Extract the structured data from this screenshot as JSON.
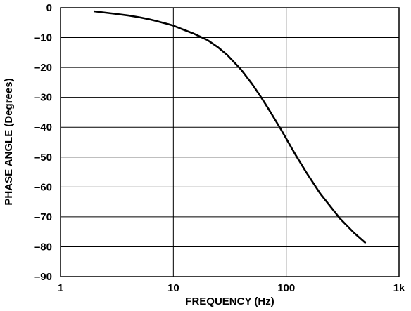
{
  "chart_data": {
    "type": "line",
    "title": "",
    "xlabel": "FREQUENCY (Hz)",
    "ylabel": "PHASE ANGLE (Degrees)",
    "x_scale": "log",
    "xlim": [
      1,
      1000
    ],
    "ylim": [
      -90,
      0
    ],
    "x_ticks": [
      {
        "value": 1,
        "label": "1"
      },
      {
        "value": 10,
        "label": "10"
      },
      {
        "value": 100,
        "label": "100"
      },
      {
        "value": 1000,
        "label": "1k"
      }
    ],
    "y_ticks": [
      {
        "value": 0,
        "label": "0"
      },
      {
        "value": -10,
        "label": "–10"
      },
      {
        "value": -20,
        "label": "–20"
      },
      {
        "value": -30,
        "label": "–30"
      },
      {
        "value": -40,
        "label": "–40"
      },
      {
        "value": -50,
        "label": "–50"
      },
      {
        "value": -60,
        "label": "–60"
      },
      {
        "value": -70,
        "label": "–70"
      },
      {
        "value": -80,
        "label": "–80"
      },
      {
        "value": -90,
        "label": "–90"
      }
    ],
    "grid": true,
    "legend": "none",
    "series": [
      {
        "x": [
          2,
          3,
          4,
          5,
          6,
          7,
          8,
          9,
          10,
          12,
          15,
          20,
          25,
          30,
          40,
          50,
          60,
          70,
          80,
          90,
          100,
          120,
          150,
          200,
          300,
          400,
          500
        ],
        "y": [
          -1.2,
          -2,
          -2.6,
          -3.2,
          -3.8,
          -4.4,
          -5.0,
          -5.5,
          -6.0,
          -7.2,
          -8.6,
          -10.8,
          -13.3,
          -15.8,
          -20.8,
          -25.6,
          -30.0,
          -34.0,
          -37.6,
          -40.8,
          -43.8,
          -49.0,
          -55.0,
          -62.2,
          -70.6,
          -75.4,
          -78.6
        ]
      }
    ],
    "colors": {
      "line": "#000000",
      "grid": "#000000",
      "background": "#ffffff"
    }
  }
}
